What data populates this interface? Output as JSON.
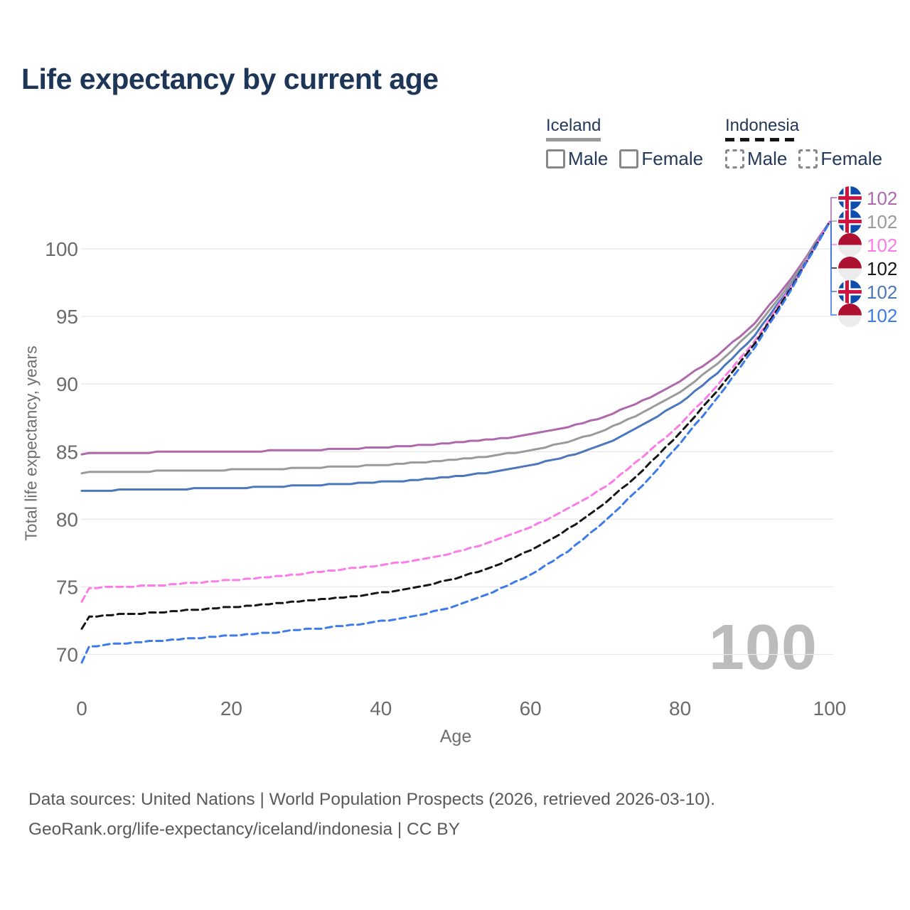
{
  "page": {
    "title": "Life expectancy by current age"
  },
  "legend": {
    "groups": [
      {
        "name": "Iceland",
        "style": "solid",
        "underline_color": "#9a9a9a",
        "items": [
          {
            "label": "Male",
            "color": "#4b77bc"
          },
          {
            "label": "Female",
            "color": "#ae68ac"
          }
        ]
      },
      {
        "name": "Indonesia",
        "style": "dashed",
        "underline_color": "#161616",
        "items": [
          {
            "label": "Male",
            "color": "#3d7bea"
          },
          {
            "label": "Female",
            "color": "#fb7ce8"
          }
        ]
      }
    ]
  },
  "chart_data": {
    "type": "line",
    "title": "Life expectancy by current age",
    "xlabel": "Age",
    "ylabel": "Total life expectancy, years",
    "xlim": [
      0,
      100
    ],
    "ylim": [
      69,
      103
    ],
    "xticks": [
      0,
      20,
      40,
      60,
      80,
      100
    ],
    "yticks": [
      70,
      75,
      80,
      85,
      90,
      95,
      100
    ],
    "grid": "horizontal",
    "legend_position": "top-right",
    "watermark": "100",
    "x": [
      0,
      1,
      5,
      10,
      15,
      20,
      25,
      30,
      35,
      40,
      45,
      50,
      55,
      60,
      65,
      70,
      75,
      80,
      85,
      90,
      95,
      100
    ],
    "series": [
      {
        "id": "iceland-female",
        "name": "Iceland Female",
        "color": "#ae68ac",
        "dash": false,
        "values": [
          84.8,
          84.85,
          84.9,
          84.95,
          85.0,
          85.0,
          85.05,
          85.1,
          85.2,
          85.3,
          85.45,
          85.65,
          85.9,
          86.25,
          86.8,
          87.6,
          88.75,
          90.2,
          92.1,
          94.5,
          97.9,
          102
        ]
      },
      {
        "id": "iceland-both",
        "name": "Iceland Both sexes",
        "color": "#9a9a9a",
        "dash": false,
        "values": [
          83.4,
          83.45,
          83.5,
          83.55,
          83.6,
          83.65,
          83.7,
          83.8,
          83.9,
          84.0,
          84.2,
          84.4,
          84.7,
          85.1,
          85.7,
          86.6,
          87.85,
          89.4,
          91.5,
          94.1,
          97.65,
          102
        ]
      },
      {
        "id": "iceland-male",
        "name": "Iceland Male",
        "color": "#4b77bc",
        "dash": false,
        "values": [
          82.1,
          82.1,
          82.15,
          82.2,
          82.25,
          82.3,
          82.4,
          82.5,
          82.6,
          82.75,
          82.9,
          83.15,
          83.5,
          84.0,
          84.65,
          85.55,
          87.0,
          88.6,
          90.8,
          93.6,
          97.4,
          102
        ]
      },
      {
        "id": "indonesia-female",
        "name": "Indonesia Female",
        "color": "#fb7ce8",
        "dash": true,
        "values": [
          73.9,
          74.9,
          75.0,
          75.1,
          75.3,
          75.5,
          75.7,
          76.0,
          76.3,
          76.6,
          77.0,
          77.55,
          78.35,
          79.4,
          80.75,
          82.4,
          84.6,
          87.0,
          89.9,
          93.2,
          97.3,
          102
        ]
      },
      {
        "id": "indonesia-both",
        "name": "Indonesia Both sexes",
        "color": "#161616",
        "dash": true,
        "values": [
          71.9,
          72.8,
          72.95,
          73.1,
          73.3,
          73.5,
          73.7,
          73.95,
          74.2,
          74.55,
          75.0,
          75.6,
          76.5,
          77.7,
          79.25,
          81.2,
          83.6,
          86.4,
          89.5,
          93.0,
          97.2,
          102
        ]
      },
      {
        "id": "indonesia-male",
        "name": "Indonesia Male",
        "color": "#3d7bea",
        "dash": true,
        "values": [
          69.4,
          70.6,
          70.8,
          71.0,
          71.2,
          71.4,
          71.6,
          71.85,
          72.1,
          72.45,
          72.9,
          73.55,
          74.6,
          75.9,
          77.6,
          79.9,
          82.5,
          85.6,
          89.0,
          92.7,
          97.1,
          102
        ]
      }
    ],
    "end_labels": [
      {
        "series": "iceland-female",
        "flag": "iceland",
        "value": "102"
      },
      {
        "series": "iceland-both",
        "flag": "iceland",
        "value": "102"
      },
      {
        "series": "indonesia-female",
        "flag": "indonesia",
        "value": "102"
      },
      {
        "series": "indonesia-both",
        "flag": "indonesia",
        "value": "102"
      },
      {
        "series": "iceland-male",
        "flag": "iceland",
        "value": "102"
      },
      {
        "series": "indonesia-male",
        "flag": "indonesia",
        "value": "102"
      }
    ]
  },
  "footer": {
    "line1": "Data sources: United Nations | World Population Prospects (2026, retrieved 2026-03-10).",
    "line2": "GeoRank.org/life-expectancy/iceland/indonesia | CC BY"
  }
}
